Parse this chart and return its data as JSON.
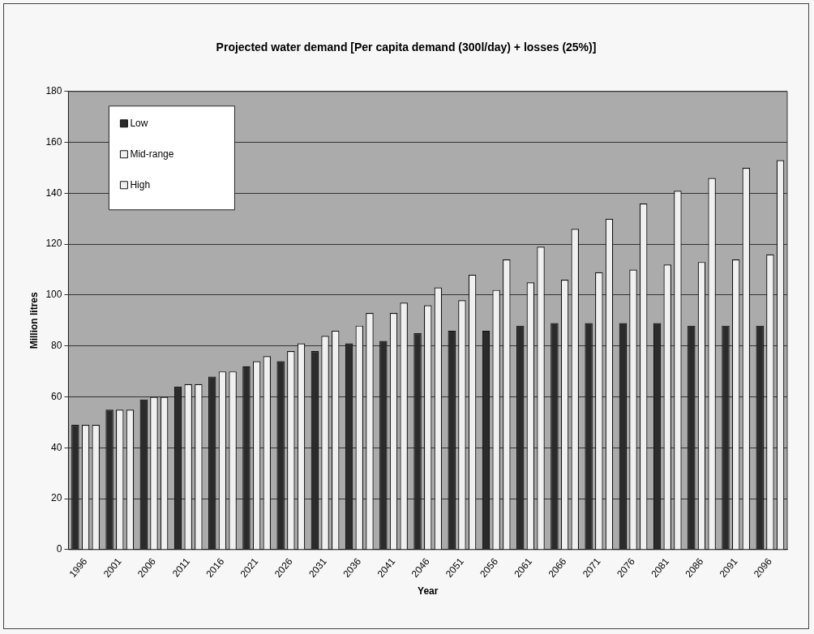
{
  "chart_data": {
    "type": "bar",
    "title": "Projected water demand [Per capita demand (300l/day) + losses (25%)]",
    "xlabel": "Year",
    "ylabel": "Million litres",
    "categories": [
      "1996",
      "2001",
      "2006",
      "2011",
      "2016",
      "2021",
      "2026",
      "2031",
      "2036",
      "2041",
      "2046",
      "2051",
      "2056",
      "2061",
      "2066",
      "2071",
      "2076",
      "2081",
      "2086",
      "2091",
      "2096"
    ],
    "series": [
      {
        "name": "Low",
        "color": "#2b2b2b",
        "values": [
          49,
          55,
          59,
          64,
          68,
          72,
          74,
          78,
          81,
          82,
          85,
          86,
          86,
          88,
          89,
          89,
          89,
          89,
          88,
          88,
          88
        ]
      },
      {
        "name": "Mid-range",
        "color": "#f0f0f0",
        "values": [
          49,
          55,
          60,
          65,
          70,
          74,
          78,
          84,
          88,
          93,
          96,
          98,
          102,
          105,
          106,
          109,
          110,
          112,
          113,
          114,
          116
        ]
      },
      {
        "name": "High",
        "color": "#f0f0f0",
        "values": [
          49,
          55,
          60,
          65,
          70,
          76,
          81,
          86,
          93,
          97,
          103,
          108,
          114,
          119,
          126,
          130,
          136,
          141,
          146,
          150,
          153
        ]
      }
    ],
    "ylim": [
      0,
      180
    ],
    "yticks": [
      0,
      20,
      40,
      60,
      80,
      100,
      120,
      140,
      160,
      180
    ],
    "grid": "y",
    "legend": "top left"
  }
}
